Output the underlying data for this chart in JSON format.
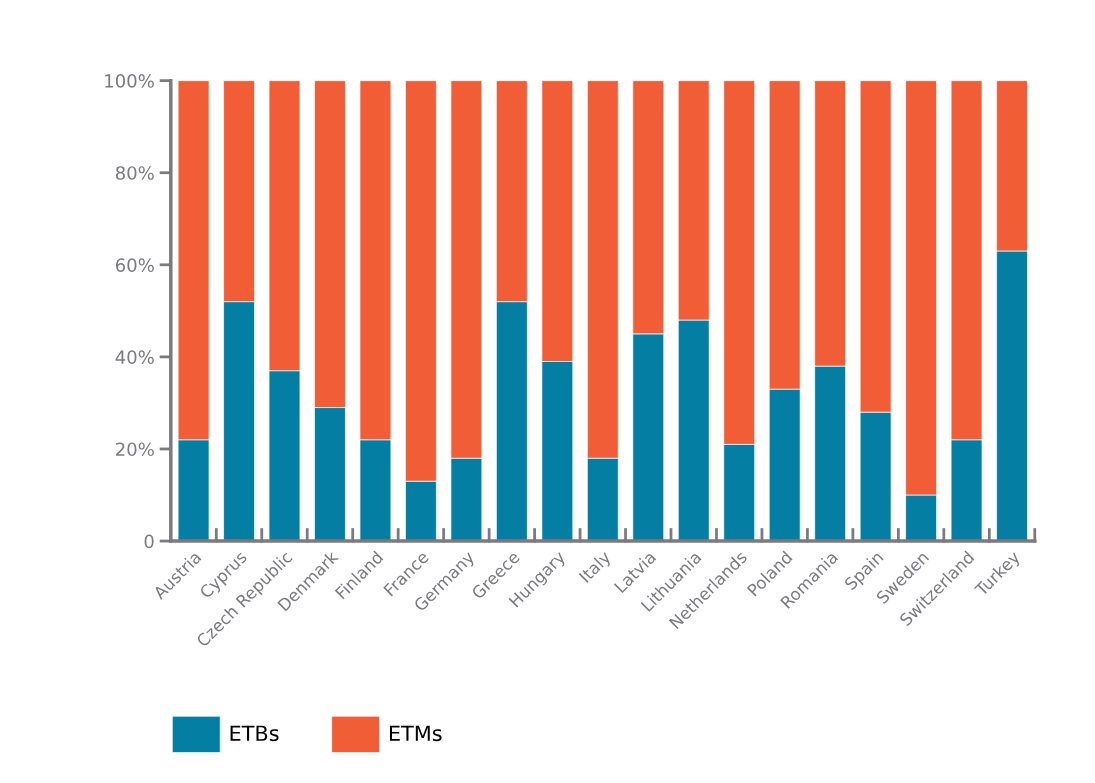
{
  "chart_data": {
    "type": "bar",
    "stacked": true,
    "categories": [
      "Austria",
      "Cyprus",
      "Czech Republic",
      "Denmark",
      "Finland",
      "France",
      "Germany",
      "Greece",
      "Hungary",
      "Italy",
      "Latvia",
      "Lithuania",
      "Netherlands",
      "Poland",
      "Romania",
      "Spain",
      "Sweden",
      "Switzerland",
      "Turkey"
    ],
    "series": [
      {
        "name": "ETBs",
        "color": "#047ea2",
        "values": [
          22,
          52,
          37,
          29,
          22,
          13,
          18,
          52,
          39,
          18,
          45,
          48,
          21,
          33,
          38,
          28,
          10,
          22,
          63
        ]
      },
      {
        "name": "ETMs",
        "color": "#f05d36",
        "values": [
          78,
          48,
          63,
          71,
          78,
          87,
          82,
          48,
          61,
          82,
          55,
          52,
          79,
          67,
          62,
          72,
          90,
          78,
          37
        ]
      }
    ],
    "ylim": [
      0,
      100
    ],
    "yticks": [
      {
        "value": 0,
        "label": "0"
      },
      {
        "value": 20,
        "label": "20%"
      },
      {
        "value": 40,
        "label": "40%"
      },
      {
        "value": 60,
        "label": "60%"
      },
      {
        "value": 80,
        "label": "80%"
      },
      {
        "value": 100,
        "label": "100%"
      }
    ],
    "grid": false,
    "legend": "bottom left"
  }
}
